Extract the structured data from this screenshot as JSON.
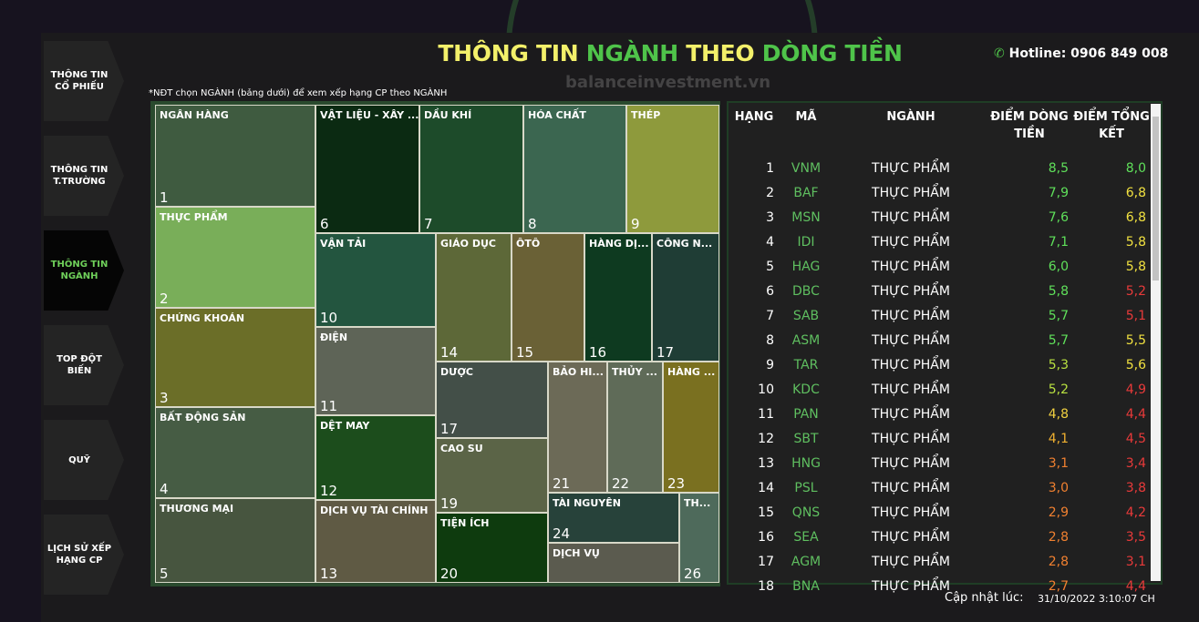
{
  "nav": [
    "THÔNG TIN CỔ PHIẾU",
    "THÔNG TIN T.TRƯỜNG",
    "THÔNG TIN NGÀNH",
    "TOP ĐỘT BIẾN",
    "QUỸ",
    "LỊCH SỬ XẾP HẠNG CP"
  ],
  "active_nav": 2,
  "header": {
    "title_parts": [
      {
        "text": "THÔNG TIN ",
        "color": "#f3f06a"
      },
      {
        "text": "NGÀNH",
        "color": "#4fc44a"
      },
      {
        "text": " THEO ",
        "color": "#f3f06a"
      },
      {
        "text": "DÒNG TIỀN",
        "color": "#4fc44a"
      }
    ],
    "hotline": "Hotline: 0906 849 008",
    "watermark": "balanceinvestment.vn"
  },
  "note": "*NĐT chọn NGÀNH (bảng dưới) để xem xếp hạng CP theo NGÀNH",
  "treemap": [
    {
      "label": "NGÂN HÀNG",
      "number": 1,
      "color": "#3f5b40"
    },
    {
      "label": "THỰC PHẨM",
      "number": 2,
      "color": "#79ae59"
    },
    {
      "label": "CHỨNG KHOÁN",
      "number": 3,
      "color": "#6b6e28"
    },
    {
      "label": "BẤT ĐỘNG SẢN",
      "number": 4,
      "color": "#465c44"
    },
    {
      "label": "THƯƠNG MẠI",
      "number": 5,
      "color": "#47553f"
    },
    {
      "label": "VẬT LIỆU - XÂY ...",
      "number": 6,
      "color": "#0b2a12"
    },
    {
      "label": "DẦU KHÍ",
      "number": 7,
      "color": "#1d4b2a"
    },
    {
      "label": "HÓA CHẤT",
      "number": 8,
      "color": "#3b6650"
    },
    {
      "label": "THÉP",
      "number": 9,
      "color": "#8e9a3c"
    },
    {
      "label": "VẬN TẢI",
      "number": 10,
      "color": "#23553f"
    },
    {
      "label": "ĐIỆN",
      "number": 11,
      "color": "#5e6457"
    },
    {
      "label": "DỆT MAY",
      "number": 12,
      "color": "#1c4d1c"
    },
    {
      "label": "DỊCH VỤ TÀI CHÍNH",
      "number": 13,
      "color": "#5f5a44"
    },
    {
      "label": "GIÁO DỤC",
      "number": 14,
      "color": "#5d6838"
    },
    {
      "label": "ÔTÔ",
      "number": 15,
      "color": "#6a6136"
    },
    {
      "label": "HÀNG DỊ...",
      "number": 16,
      "color": "#0e3a20"
    },
    {
      "label": "CÔNG N...",
      "number": 17,
      "color": "#1f3d35"
    },
    {
      "label": "DƯỢC",
      "number": 17,
      "color": "#434f48"
    },
    {
      "label": "CAO SU",
      "number": 19,
      "color": "#5b6447"
    },
    {
      "label": "TIỆN ÍCH",
      "number": 20,
      "color": "#0e3b0e"
    },
    {
      "label": "BẢO HI...",
      "number": 21,
      "color": "#6c6a57"
    },
    {
      "label": "THỦY ...",
      "number": 22,
      "color": "#5f6b58"
    },
    {
      "label": "HÀNG ...",
      "number": 23,
      "color": "#7a7020"
    },
    {
      "label": "TÀI NGUYÊN",
      "number": 24,
      "color": "#27423a"
    },
    {
      "label": "DỊCH VỤ",
      "color": "#5b5b4f"
    },
    {
      "label": "TH...",
      "number": 26,
      "color": "#4e6a5b"
    }
  ],
  "table": {
    "headers": [
      "HẠNG",
      "MÃ",
      "NGÀNH",
      "ĐIỂM DÒNG TIỀN",
      "ĐIỂM TỔNG KẾT"
    ],
    "code_color": "#5fbf60",
    "rows": [
      {
        "rank": 1,
        "code": "VNM",
        "sector": "THỰC PHẨM",
        "flow": "8,5",
        "flow_color": "#5fe05a",
        "total": "8,0",
        "total_color": "#5fe05a"
      },
      {
        "rank": 2,
        "code": "BAF",
        "sector": "THỰC PHẨM",
        "flow": "7,9",
        "flow_color": "#5fe05a",
        "total": "6,8",
        "total_color": "#f0e040"
      },
      {
        "rank": 3,
        "code": "MSN",
        "sector": "THỰC PHẨM",
        "flow": "7,6",
        "flow_color": "#5fe05a",
        "total": "6,8",
        "total_color": "#f0e040"
      },
      {
        "rank": 4,
        "code": "IDI",
        "sector": "THỰC PHẨM",
        "flow": "7,1",
        "flow_color": "#5fe05a",
        "total": "5,8",
        "total_color": "#f0e040"
      },
      {
        "rank": 5,
        "code": "HAG",
        "sector": "THỰC PHẨM",
        "flow": "6,0",
        "flow_color": "#5fe05a",
        "total": "5,8",
        "total_color": "#f0e040"
      },
      {
        "rank": 6,
        "code": "DBC",
        "sector": "THỰC PHẨM",
        "flow": "5,8",
        "flow_color": "#5fe05a",
        "total": "5,2",
        "total_color": "#e83a3a"
      },
      {
        "rank": 7,
        "code": "SAB",
        "sector": "THỰC PHẨM",
        "flow": "5,7",
        "flow_color": "#5fe05a",
        "total": "5,1",
        "total_color": "#e83a3a"
      },
      {
        "rank": 8,
        "code": "ASM",
        "sector": "THỰC PHẨM",
        "flow": "5,7",
        "flow_color": "#5fe05a",
        "total": "5,5",
        "total_color": "#f0e040"
      },
      {
        "rank": 9,
        "code": "TAR",
        "sector": "THỰC PHẨM",
        "flow": "5,3",
        "flow_color": "#b8e040",
        "total": "5,6",
        "total_color": "#f0e040"
      },
      {
        "rank": 10,
        "code": "KDC",
        "sector": "THỰC PHẨM",
        "flow": "5,2",
        "flow_color": "#b8e040",
        "total": "4,9",
        "total_color": "#e83a3a"
      },
      {
        "rank": 11,
        "code": "PAN",
        "sector": "THỰC PHẨM",
        "flow": "4,8",
        "flow_color": "#f0d040",
        "total": "4,4",
        "total_color": "#e83a3a"
      },
      {
        "rank": 12,
        "code": "SBT",
        "sector": "THỰC PHẨM",
        "flow": "4,1",
        "flow_color": "#f0b030",
        "total": "4,5",
        "total_color": "#e83a3a"
      },
      {
        "rank": 13,
        "code": "HNG",
        "sector": "THỰC PHẨM",
        "flow": "3,1",
        "flow_color": "#f08030",
        "total": "3,4",
        "total_color": "#e83a3a"
      },
      {
        "rank": 14,
        "code": "PSL",
        "sector": "THỰC PHẨM",
        "flow": "3,0",
        "flow_color": "#f08030",
        "total": "3,8",
        "total_color": "#e83a3a"
      },
      {
        "rank": 15,
        "code": "QNS",
        "sector": "THỰC PHẨM",
        "flow": "2,9",
        "flow_color": "#f08030",
        "total": "4,2",
        "total_color": "#e83a3a"
      },
      {
        "rank": 16,
        "code": "SEA",
        "sector": "THỰC PHẨM",
        "flow": "2,8",
        "flow_color": "#f08030",
        "total": "3,5",
        "total_color": "#e83a3a"
      },
      {
        "rank": 17,
        "code": "AGM",
        "sector": "THỰC PHẨM",
        "flow": "2,8",
        "flow_color": "#f08030",
        "total": "3,1",
        "total_color": "#e83a3a"
      },
      {
        "rank": 18,
        "code": "BNA",
        "sector": "THỰC PHẨM",
        "flow": "2,7",
        "flow_color": "#f08030",
        "total": "4,4",
        "total_color": "#e83a3a"
      }
    ]
  },
  "footer": {
    "label": "Cập nhật lúc:",
    "time": "31/10/2022 3:10:07 CH"
  }
}
